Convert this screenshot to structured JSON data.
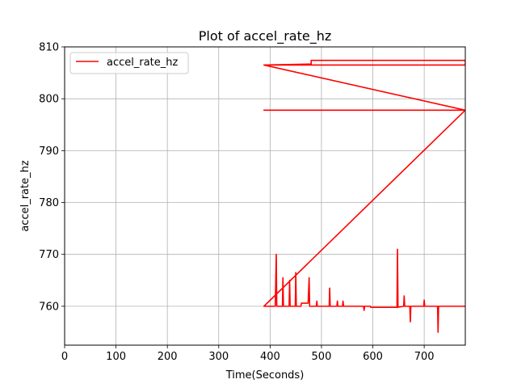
{
  "chart_data": {
    "type": "line",
    "title": "Plot of accel_rate_hz",
    "xlabel": "Time(Seconds)",
    "ylabel": "accel_rate_hz",
    "xlim": [
      0,
      780
    ],
    "ylim": [
      752.5,
      810
    ],
    "xticks": [
      0,
      100,
      200,
      300,
      400,
      500,
      600,
      700
    ],
    "yticks": [
      760,
      770,
      780,
      790,
      800,
      810
    ],
    "grid": true,
    "legend_position": "top-left",
    "series": [
      {
        "name": "accel_rate_hz",
        "color": "#ff0000",
        "x": [
          388,
          480,
          480,
          780,
          780,
          388,
          780,
          388,
          388,
          780,
          388,
          390,
          410,
          412,
          413,
          424,
          425,
          426,
          437,
          438,
          439,
          449,
          450,
          451,
          460,
          461,
          474,
          476,
          477,
          490,
          491,
          492,
          515,
          516,
          517,
          530,
          531,
          532,
          541,
          542,
          543,
          582,
          583,
          584,
          595,
          596,
          647,
          648,
          649,
          660,
          661,
          662,
          672,
          673,
          674,
          699,
          700,
          701,
          726,
          727,
          728,
          780
        ],
        "y": [
          806.5,
          806.7,
          807.4,
          807.4,
          806.5,
          806.5,
          797.8,
          797.8,
          797.8,
          797.8,
          760,
          760,
          760,
          770,
          760,
          760,
          765.5,
          760,
          760,
          765,
          760,
          760,
          766.5,
          760,
          760,
          760.6,
          760.6,
          765.5,
          760,
          760,
          761,
          760,
          760,
          763.5,
          760,
          760,
          761,
          760,
          760,
          761,
          760,
          760,
          759.2,
          760,
          760,
          759.8,
          759.8,
          771,
          759.8,
          760,
          762,
          760,
          760,
          757,
          760,
          760,
          761.2,
          760,
          760,
          755,
          760,
          760
        ]
      }
    ]
  }
}
